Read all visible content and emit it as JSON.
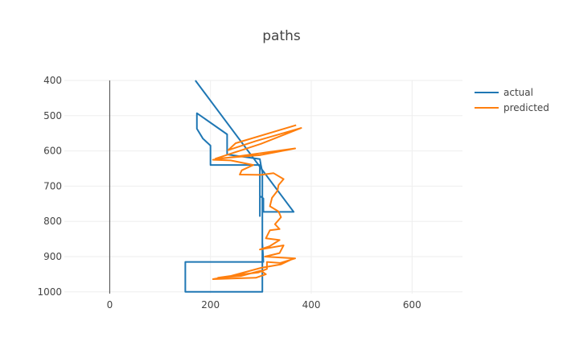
{
  "chart_data": {
    "type": "line",
    "title": "paths",
    "xlabel": "",
    "ylabel": "",
    "xlim": [
      -90,
      700
    ],
    "ylim": [
      1005,
      400
    ],
    "y_reversed": true,
    "x_ticks": [
      0,
      200,
      400,
      600
    ],
    "y_ticks": [
      400,
      500,
      600,
      700,
      800,
      900,
      1000
    ],
    "grid": true,
    "legend_position": "top-right",
    "zero_line_x": 0,
    "series": [
      {
        "name": "actual",
        "color": "#1f77b4",
        "points": [
          [
            170,
            400
          ],
          [
            365,
            773
          ],
          [
            305,
            773
          ],
          [
            305,
            735
          ],
          [
            298,
            728
          ],
          [
            298,
            785
          ],
          [
            298,
            640
          ],
          [
            200,
            640
          ],
          [
            200,
            585
          ],
          [
            185,
            565
          ],
          [
            173,
            537
          ],
          [
            173,
            493
          ],
          [
            233,
            553
          ],
          [
            233,
            610
          ],
          [
            298,
            623
          ],
          [
            300,
            640
          ],
          [
            303,
            660
          ],
          [
            303,
            860
          ],
          [
            305,
            915
          ],
          [
            150,
            915
          ],
          [
            150,
            1000
          ],
          [
            303,
            1000
          ],
          [
            303,
            860
          ]
        ]
      },
      {
        "name": "predicted",
        "color": "#ff7f0e",
        "points": [
          [
            370,
            527
          ],
          [
            250,
            578
          ],
          [
            235,
            598
          ],
          [
            290,
            572
          ],
          [
            380,
            535
          ],
          [
            300,
            580
          ],
          [
            240,
            608
          ],
          [
            210,
            622
          ],
          [
            298,
            612
          ],
          [
            368,
            593
          ],
          [
            205,
            625
          ],
          [
            240,
            627
          ],
          [
            285,
            640
          ],
          [
            262,
            655
          ],
          [
            258,
            667
          ],
          [
            300,
            668
          ],
          [
            325,
            663
          ],
          [
            345,
            680
          ],
          [
            335,
            697
          ],
          [
            333,
            713
          ],
          [
            322,
            733
          ],
          [
            318,
            757
          ],
          [
            335,
            772
          ],
          [
            340,
            788
          ],
          [
            328,
            808
          ],
          [
            337,
            822
          ],
          [
            318,
            825
          ],
          [
            310,
            848
          ],
          [
            337,
            853
          ],
          [
            318,
            870
          ],
          [
            298,
            880
          ],
          [
            345,
            868
          ],
          [
            337,
            890
          ],
          [
            308,
            900
          ],
          [
            368,
            905
          ],
          [
            338,
            918
          ],
          [
            312,
            915
          ],
          [
            312,
            935
          ],
          [
            295,
            945
          ],
          [
            265,
            950
          ],
          [
            215,
            960
          ],
          [
            260,
            955
          ],
          [
            300,
            940
          ],
          [
            310,
            950
          ],
          [
            290,
            960
          ],
          [
            240,
            962
          ],
          [
            205,
            964
          ],
          [
            240,
            955
          ],
          [
            300,
            932
          ],
          [
            340,
            922
          ],
          [
            365,
            905
          ]
        ]
      }
    ]
  }
}
